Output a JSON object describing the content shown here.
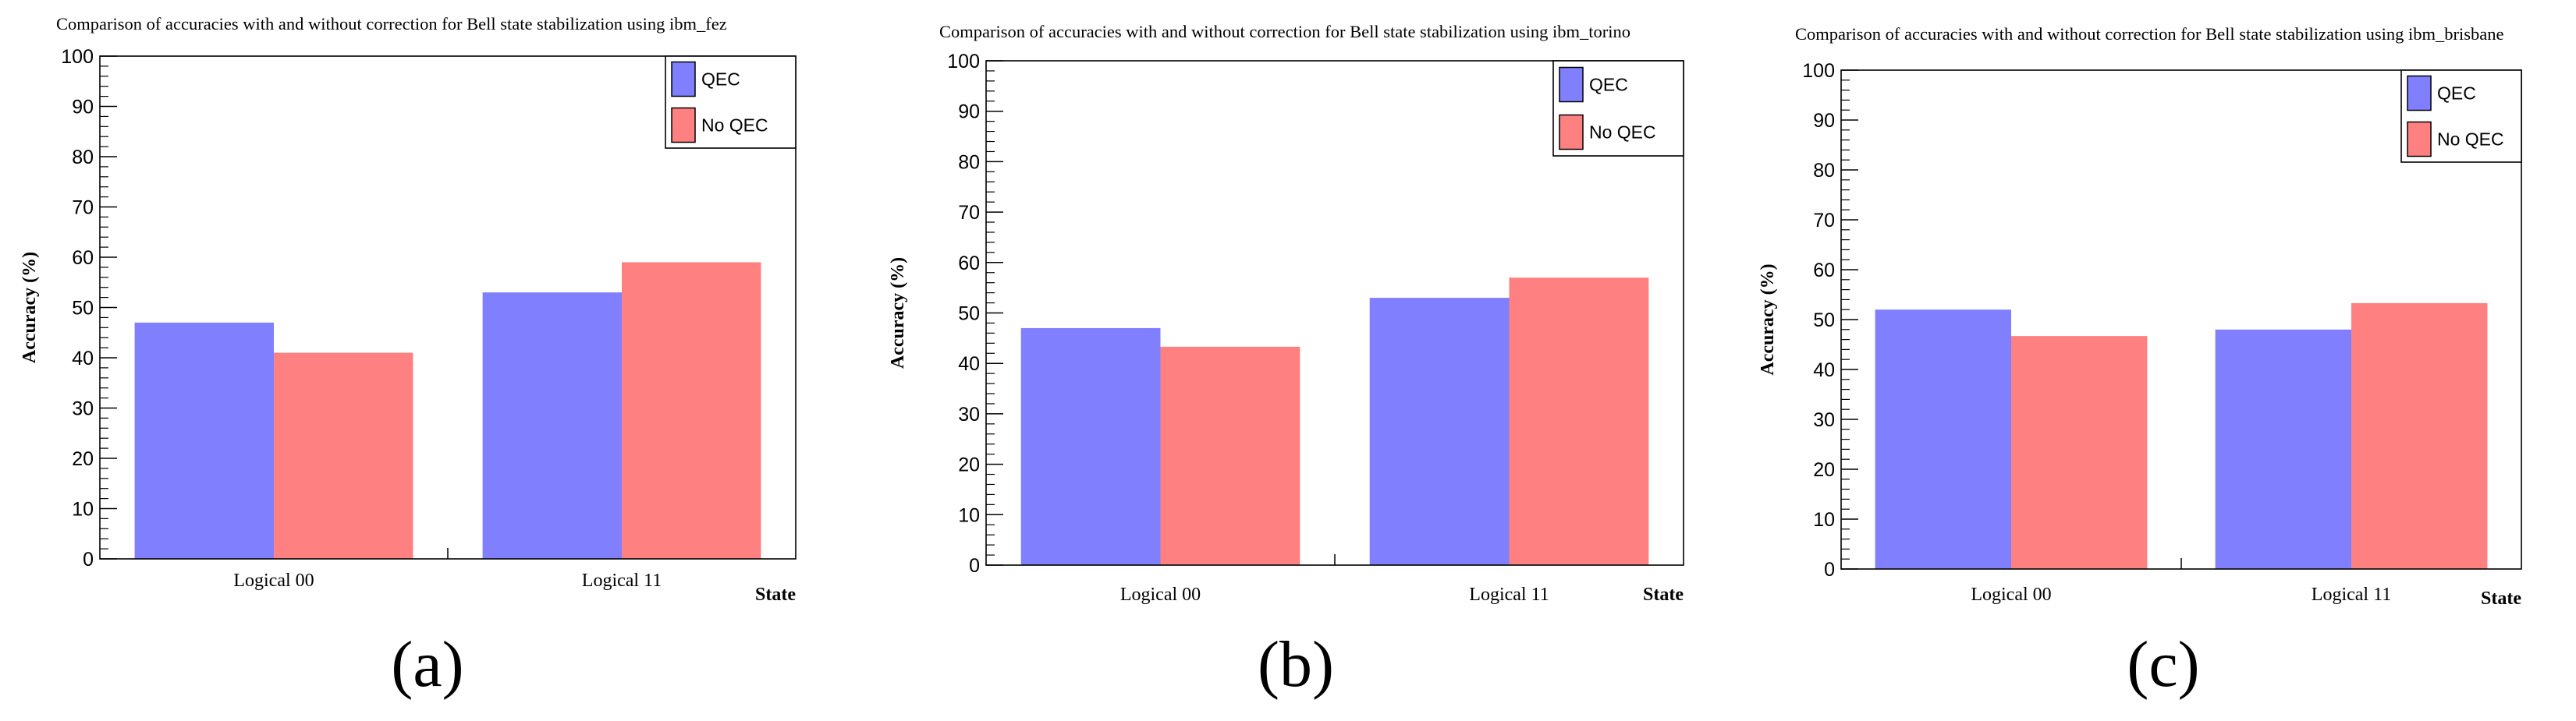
{
  "colors": {
    "qec": "#8080ff",
    "no_qec": "#ff8080"
  },
  "chart_data": [
    {
      "type": "bar",
      "title": "Comparison of accuracies with and without correction for Bell state stabilization using ibm_fez",
      "xlabel": "State",
      "ylabel": "Accuracy (%)",
      "ylim": [
        0,
        100
      ],
      "yticks": [
        "0",
        "10",
        "20",
        "30",
        "40",
        "50",
        "60",
        "70",
        "80",
        "90",
        "100"
      ],
      "categories": [
        "Logical 00",
        "Logical 11"
      ],
      "series": [
        {
          "name": "QEC",
          "values": [
            47,
            53
          ]
        },
        {
          "name": "No QEC",
          "values": [
            41,
            59
          ]
        }
      ],
      "legend_position": "top-right",
      "grid": false,
      "panel_label": "(a)"
    },
    {
      "type": "bar",
      "title": "Comparison of accuracies with and without correction for Bell state stabilization using ibm_torino",
      "xlabel": "State",
      "ylabel": "Accuracy (%)",
      "ylim": [
        0,
        100
      ],
      "yticks": [
        "0",
        "10",
        "20",
        "30",
        "40",
        "50",
        "60",
        "70",
        "80",
        "90",
        "100"
      ],
      "categories": [
        "Logical 00",
        "Logical 11"
      ],
      "series": [
        {
          "name": "QEC",
          "values": [
            47,
            53
          ]
        },
        {
          "name": "No QEC",
          "values": [
            43.3,
            57
          ]
        }
      ],
      "legend_position": "top-right",
      "grid": false,
      "panel_label": "(b)"
    },
    {
      "type": "bar",
      "title": "Comparison of accuracies with and without correction for Bell state stabilization using ibm_brisbane",
      "xlabel": "State",
      "ylabel": "Accuracy (%)",
      "ylim": [
        0,
        100
      ],
      "yticks": [
        "0",
        "10",
        "20",
        "30",
        "40",
        "50",
        "60",
        "70",
        "80",
        "90",
        "100"
      ],
      "categories": [
        "Logical 00",
        "Logical 11"
      ],
      "series": [
        {
          "name": "QEC",
          "values": [
            52,
            48
          ]
        },
        {
          "name": "No QEC",
          "values": [
            46.7,
            53.3
          ]
        }
      ],
      "legend_position": "top-right",
      "grid": false,
      "panel_label": "(c)"
    }
  ]
}
